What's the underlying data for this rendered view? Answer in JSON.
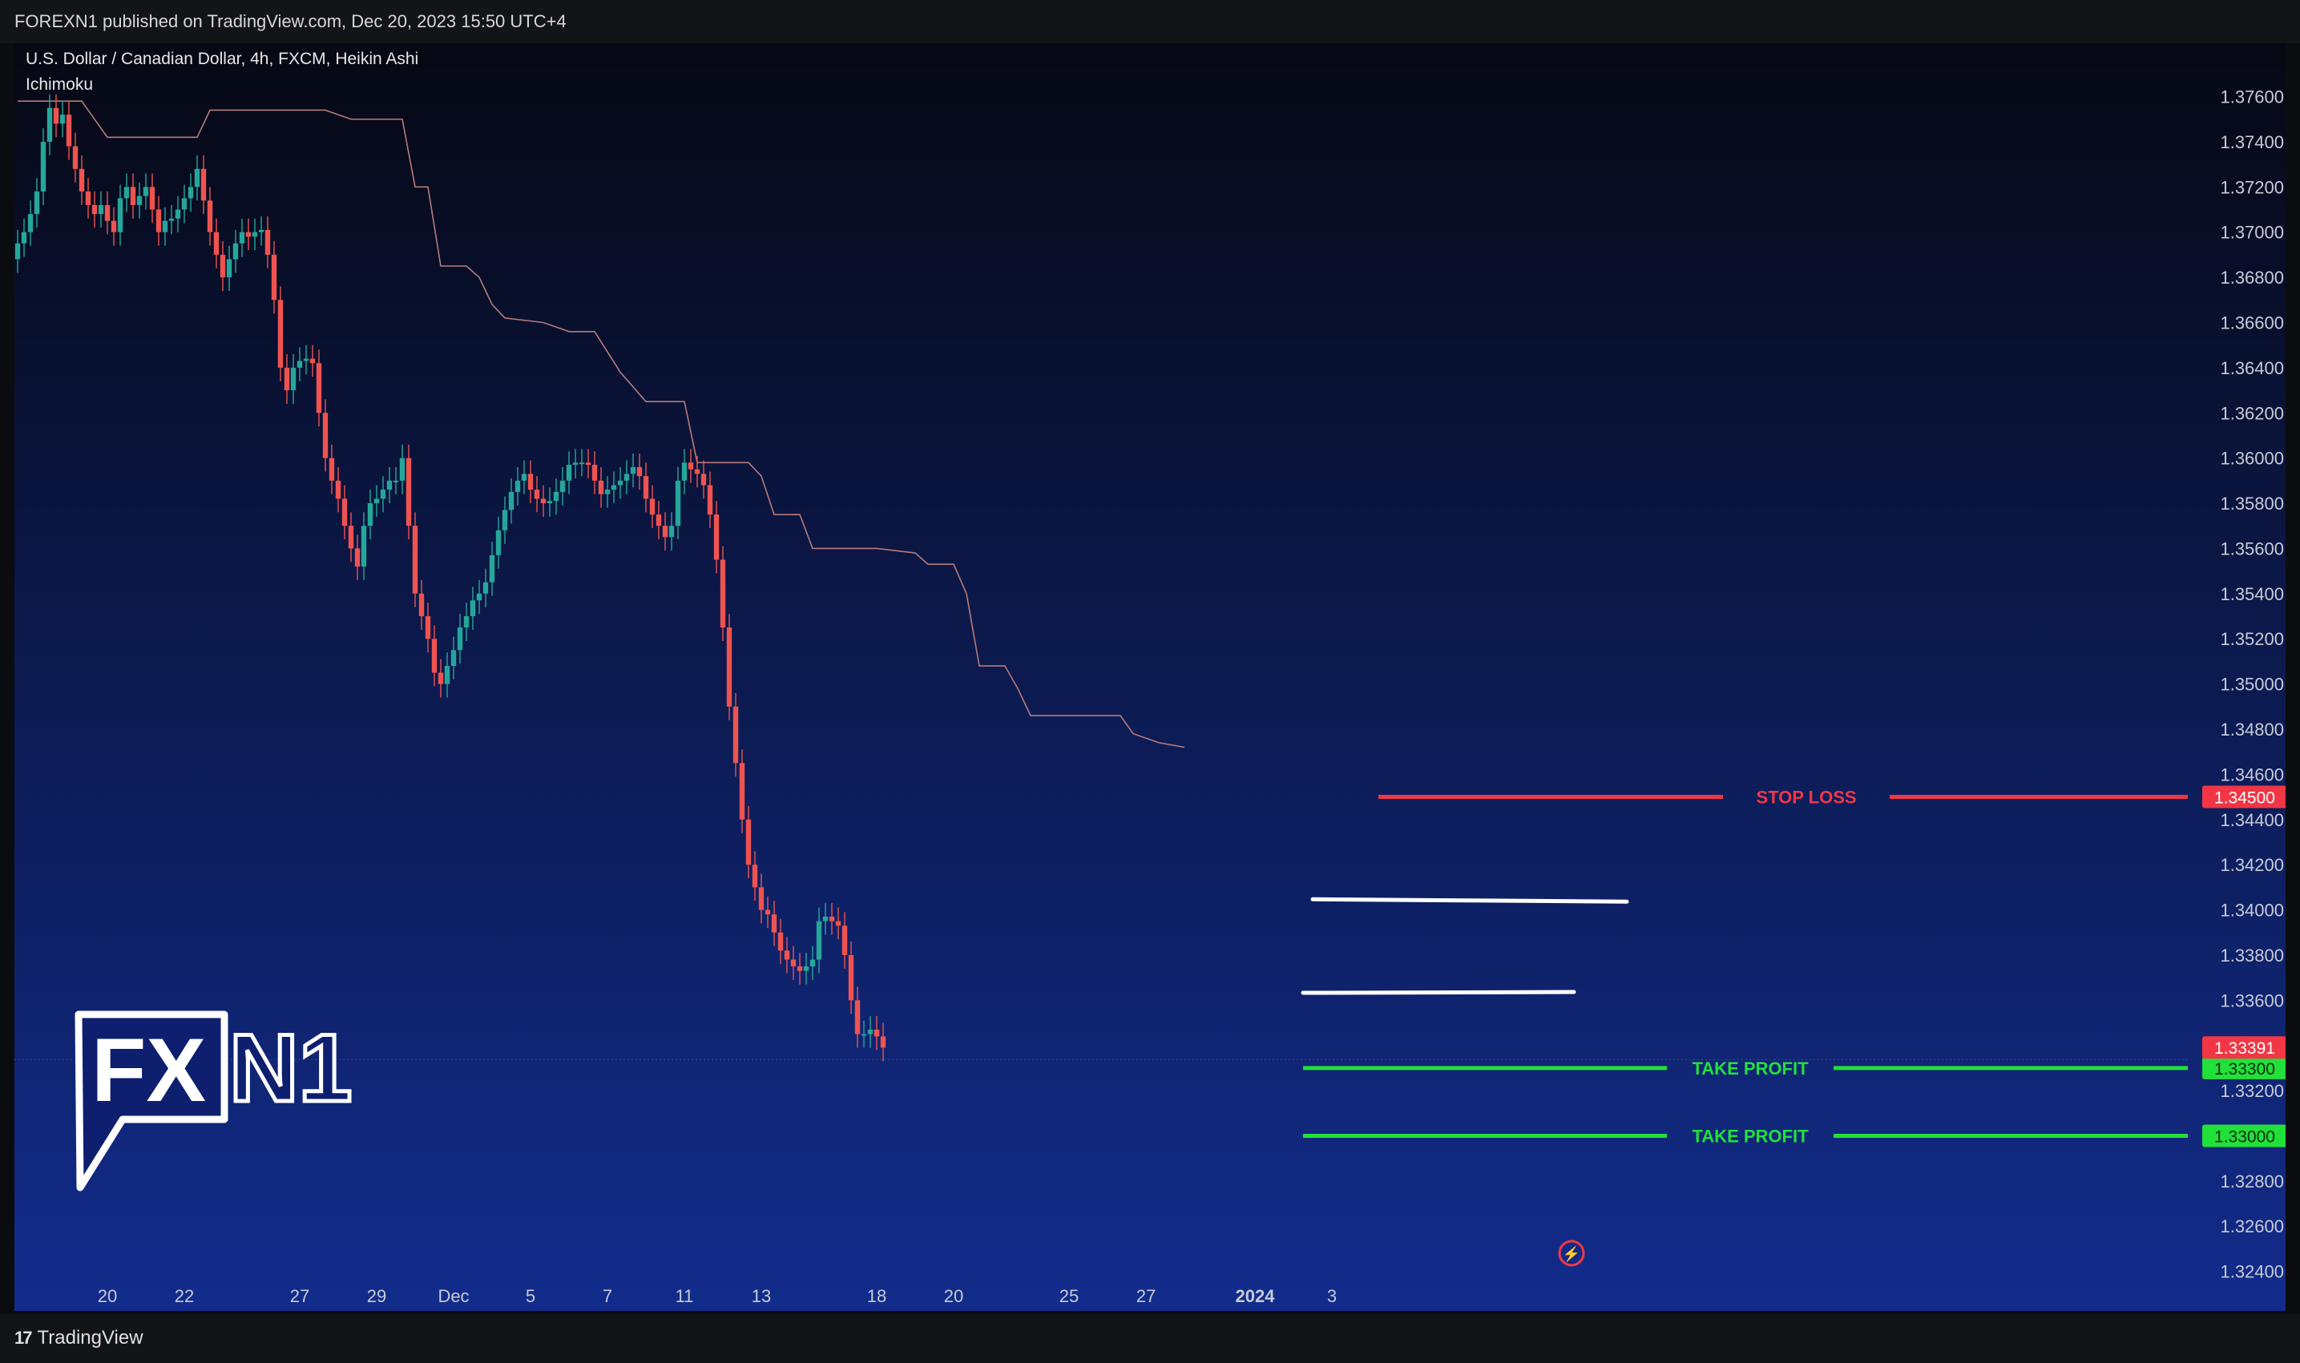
{
  "header": {
    "published": "FOREXN1 published on TradingView.com, Dec 20, 2023 15:50 UTC+4"
  },
  "footer": {
    "brand": "TradingView",
    "brand_mark": "17"
  },
  "legend": {
    "symbol": "U.S. Dollar / Canadian Dollar, 4h, FXCM, Heikin Ashi",
    "indicator": "Ichimoku"
  },
  "watermark": {
    "text_a": "FX",
    "text_b": "N1"
  },
  "colors": {
    "bg_top": "#060813",
    "bg_bottom": "#122c8c",
    "up": "#26a69a",
    "down": "#ef5350",
    "stop": "#f23645",
    "profit": "#22e03a",
    "cloud": "#b87a7a"
  },
  "chart_data": {
    "type": "candlestick",
    "title": "U.S. Dollar / Canadian Dollar, 4h, FXCM, Heikin Ashi",
    "ylim": [
      1.3231,
      1.3768
    ],
    "price_ticks": [
      "1.37600",
      "1.37400",
      "1.37200",
      "1.37000",
      "1.36800",
      "1.36600",
      "1.36400",
      "1.36200",
      "1.36000",
      "1.35800",
      "1.35600",
      "1.35400",
      "1.35200",
      "1.35000",
      "1.34800",
      "1.34600",
      "1.34400",
      "1.34200",
      "1.34000",
      "1.33800",
      "1.33600",
      "1.33200",
      "1.32800",
      "1.32600",
      "1.32400"
    ],
    "date_ticks": [
      {
        "label": "20",
        "i": 14
      },
      {
        "label": "22",
        "i": 26
      },
      {
        "label": "27",
        "i": 44
      },
      {
        "label": "29",
        "i": 56
      },
      {
        "label": "Dec",
        "i": 68
      },
      {
        "label": "5",
        "i": 80
      },
      {
        "label": "7",
        "i": 92
      },
      {
        "label": "11",
        "i": 104
      },
      {
        "label": "13",
        "i": 116
      },
      {
        "label": "18",
        "i": 134
      },
      {
        "label": "20",
        "i": 146
      },
      {
        "label": "25",
        "i": 164
      },
      {
        "label": "27",
        "i": 176
      },
      {
        "label": "2024",
        "i": 193
      },
      {
        "label": "3",
        "i": 205
      }
    ],
    "candles_close": [
      1.3695,
      1.37,
      1.3708,
      1.3718,
      1.374,
      1.3755,
      1.3748,
      1.3752,
      1.3738,
      1.3728,
      1.3718,
      1.3712,
      1.3708,
      1.3712,
      1.3705,
      1.37,
      1.3715,
      1.372,
      1.3712,
      1.3716,
      1.372,
      1.371,
      1.37,
      1.3705,
      1.3706,
      1.371,
      1.3715,
      1.372,
      1.3728,
      1.3714,
      1.37,
      1.369,
      1.368,
      1.3688,
      1.3695,
      1.37,
      1.3698,
      1.37,
      1.3701,
      1.369,
      1.367,
      1.364,
      1.363,
      1.364,
      1.3643,
      1.3644,
      1.3642,
      1.362,
      1.36,
      1.359,
      1.3582,
      1.357,
      1.356,
      1.3552,
      1.357,
      1.358,
      1.3582,
      1.3586,
      1.359,
      1.359,
      1.36,
      1.357,
      1.354,
      1.353,
      1.352,
      1.3505,
      1.35,
      1.3508,
      1.3515,
      1.3525,
      1.353,
      1.3537,
      1.354,
      1.3545,
      1.3557,
      1.3568,
      1.3577,
      1.3585,
      1.359,
      1.3593,
      1.3586,
      1.3582,
      1.358,
      1.3581,
      1.3585,
      1.359,
      1.3597,
      1.3598,
      1.3598,
      1.3597,
      1.359,
      1.3584,
      1.3586,
      1.3588,
      1.359,
      1.3593,
      1.3596,
      1.3592,
      1.3582,
      1.3575,
      1.357,
      1.3565,
      1.357,
      1.359,
      1.3598,
      1.3595,
      1.3593,
      1.3588,
      1.3575,
      1.3555,
      1.3525,
      1.349,
      1.3465,
      1.344,
      1.342,
      1.341,
      1.34,
      1.3398,
      1.339,
      1.3382,
      1.3378,
      1.3375,
      1.3373,
      1.3375,
      1.3378,
      1.3395,
      1.3397,
      1.3395,
      1.3393,
      1.338,
      1.336,
      1.3345,
      1.3345,
      1.3347,
      1.3344,
      1.3339
    ],
    "candles_open": [
      1.3688,
      1.3695,
      1.37,
      1.3708,
      1.3718,
      1.374,
      1.3755,
      1.3748,
      1.3752,
      1.3738,
      1.3728,
      1.3718,
      1.3712,
      1.3708,
      1.3712,
      1.3705,
      1.37,
      1.3715,
      1.372,
      1.3712,
      1.3716,
      1.372,
      1.371,
      1.37,
      1.3705,
      1.3706,
      1.371,
      1.3715,
      1.372,
      1.3728,
      1.3714,
      1.37,
      1.369,
      1.368,
      1.3688,
      1.3695,
      1.37,
      1.3698,
      1.37,
      1.3701,
      1.369,
      1.367,
      1.364,
      1.363,
      1.364,
      1.3643,
      1.3644,
      1.3642,
      1.362,
      1.36,
      1.359,
      1.3582,
      1.357,
      1.356,
      1.3552,
      1.357,
      1.358,
      1.3582,
      1.3586,
      1.359,
      1.359,
      1.36,
      1.357,
      1.354,
      1.353,
      1.352,
      1.3505,
      1.35,
      1.3508,
      1.3515,
      1.3525,
      1.353,
      1.3537,
      1.354,
      1.3545,
      1.3557,
      1.3568,
      1.3577,
      1.3585,
      1.359,
      1.3593,
      1.3586,
      1.3582,
      1.358,
      1.3581,
      1.3585,
      1.359,
      1.3597,
      1.3598,
      1.3598,
      1.3597,
      1.359,
      1.3584,
      1.3586,
      1.3588,
      1.359,
      1.3593,
      1.3596,
      1.3592,
      1.3582,
      1.3575,
      1.357,
      1.3565,
      1.357,
      1.359,
      1.3598,
      1.3595,
      1.3593,
      1.3588,
      1.3575,
      1.3555,
      1.3525,
      1.349,
      1.3465,
      1.344,
      1.342,
      1.341,
      1.34,
      1.3398,
      1.339,
      1.3382,
      1.3378,
      1.3375,
      1.3373,
      1.3375,
      1.3378,
      1.3395,
      1.3397,
      1.3395,
      1.3393,
      1.338,
      1.336,
      1.3345,
      1.3345,
      1.3347,
      1.3344
    ],
    "cloud_line": [
      [
        0,
        1.3758
      ],
      [
        10,
        1.3758
      ],
      [
        14,
        1.3742
      ],
      [
        28,
        1.3742
      ],
      [
        30,
        1.3754
      ],
      [
        48,
        1.3754
      ],
      [
        52,
        1.375
      ],
      [
        60,
        1.375
      ],
      [
        62,
        1.372
      ],
      [
        64,
        1.372
      ],
      [
        66,
        1.3685
      ],
      [
        70,
        1.3685
      ],
      [
        72,
        1.368
      ],
      [
        74,
        1.3668
      ],
      [
        76,
        1.3662
      ],
      [
        82,
        1.366
      ],
      [
        86,
        1.3656
      ],
      [
        90,
        1.3656
      ],
      [
        94,
        1.3638
      ],
      [
        98,
        1.3625
      ],
      [
        104,
        1.3625
      ],
      [
        106,
        1.3598
      ],
      [
        110,
        1.3598
      ],
      [
        114,
        1.3598
      ],
      [
        116,
        1.3592
      ],
      [
        118,
        1.3575
      ],
      [
        122,
        1.3575
      ],
      [
        124,
        1.356
      ],
      [
        134,
        1.356
      ],
      [
        140,
        1.3558
      ],
      [
        142,
        1.3553
      ],
      [
        146,
        1.3553
      ],
      [
        148,
        1.354
      ],
      [
        150,
        1.3508
      ],
      [
        154,
        1.3508
      ],
      [
        156,
        1.3498
      ],
      [
        158,
        1.3486
      ],
      [
        164,
        1.3486
      ],
      [
        172,
        1.3486
      ],
      [
        174,
        1.3478
      ],
      [
        178,
        1.3474
      ],
      [
        182,
        1.3472
      ]
    ],
    "levels": [
      {
        "name": "STOP LOSS",
        "price": 1.345,
        "label": "1.34500",
        "color": "#f23645"
      },
      {
        "name": "TAKE PROFIT",
        "price": 1.333,
        "label": "1.33300",
        "color": "#22e03a"
      },
      {
        "name": "TAKE PROFIT",
        "price": 1.33,
        "label": "1.33000",
        "color": "#22e03a"
      }
    ],
    "current_price": {
      "price": 1.33391,
      "label": "1.33391"
    },
    "zone_lines": [
      1.3404,
      1.3364
    ]
  }
}
